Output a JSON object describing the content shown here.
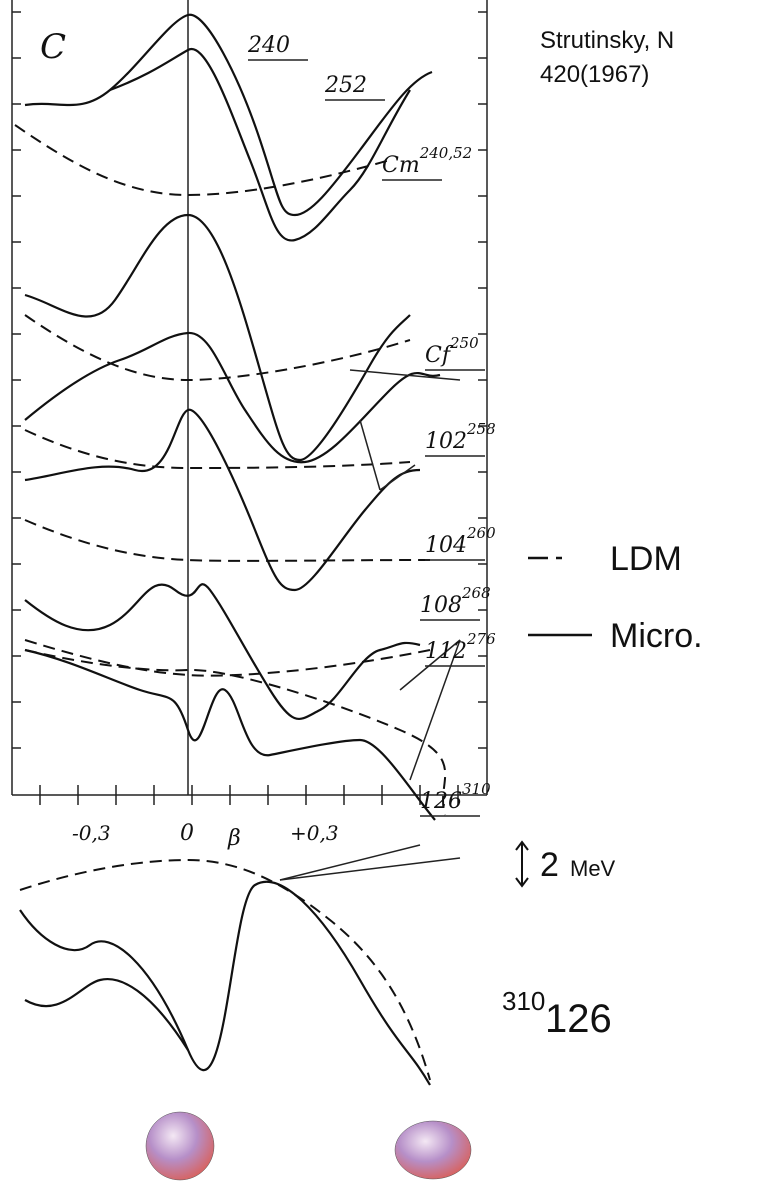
{
  "citation": {
    "line1": "Strutinsky, N",
    "line2": "420(1967)"
  },
  "figure": {
    "panel_label": "C",
    "curve_labels": [
      {
        "text": "240"
      },
      {
        "text": "252"
      },
      {
        "text": "Cm",
        "sup": "240,52"
      },
      {
        "text": "Cf",
        "sup": "250"
      },
      {
        "text": "102",
        "sup": "258"
      },
      {
        "text": "104",
        "sup": "260"
      },
      {
        "text": "108",
        "sup": "268"
      },
      {
        "text": "112",
        "sup": "276"
      },
      {
        "text": "126",
        "sup": "310"
      }
    ],
    "x_tick_labels": [
      "-0,3",
      "0",
      "+0,3"
    ],
    "x_axis_label": "β"
  },
  "legend": [
    {
      "label": "LDM"
    },
    {
      "label": "Micro."
    }
  ],
  "scale": {
    "number": "2",
    "unit": "MeV"
  },
  "nucleus": {
    "mass": "310",
    "element": "126"
  }
}
